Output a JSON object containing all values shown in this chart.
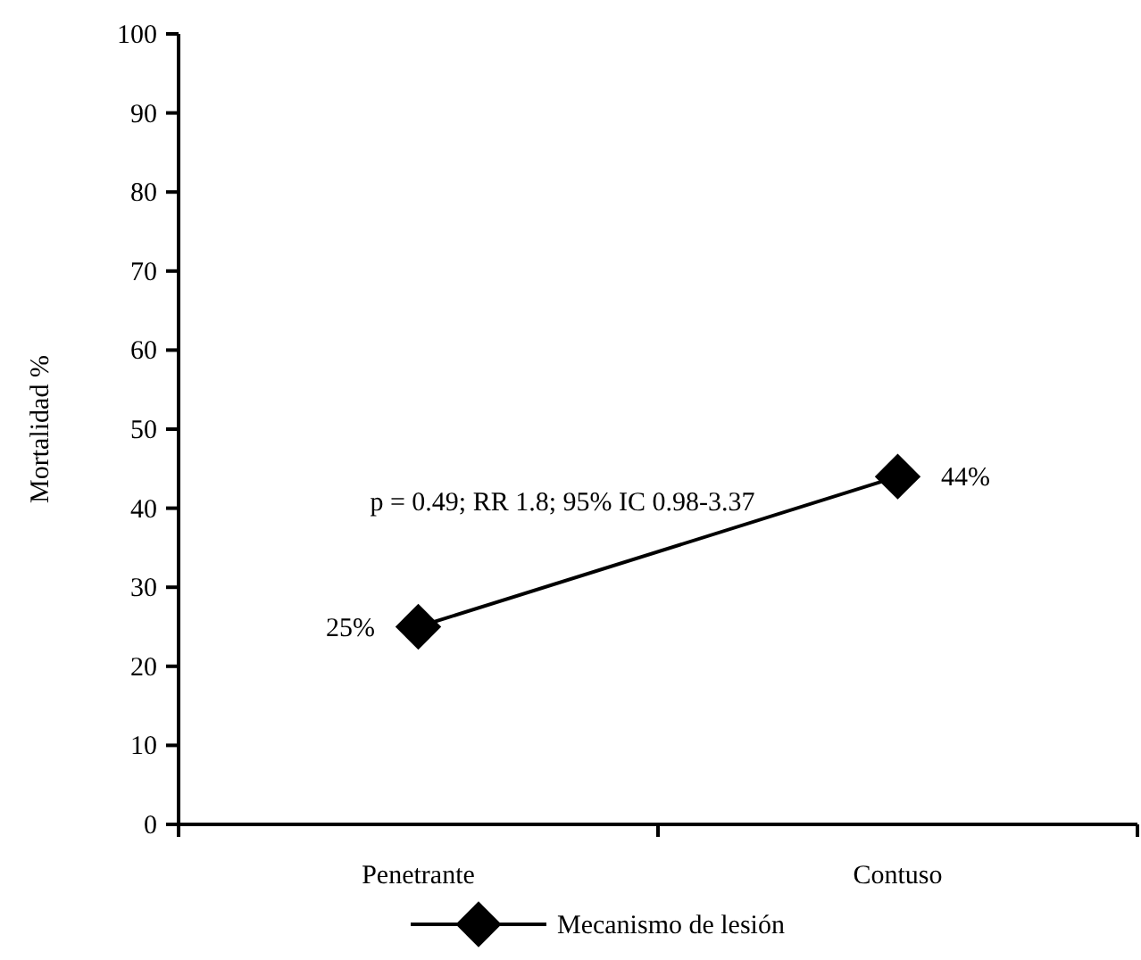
{
  "chart_data": {
    "type": "line",
    "ylabel": "Mortalidad %",
    "categories": [
      "Penetrante",
      "Contuso"
    ],
    "series": [
      {
        "name": "Mecanismo de lesión",
        "color": "#000000",
        "values": [
          25,
          44
        ],
        "value_labels": [
          "25%",
          "44%"
        ]
      }
    ],
    "ylim": [
      0,
      100
    ],
    "yticks": [
      0,
      10,
      20,
      30,
      40,
      50,
      60,
      70,
      80,
      90,
      100
    ],
    "annotations": [
      "p = 0.49; RR 1.8; 95% IC 0.98-3.37"
    ],
    "marker": "diamond",
    "line_style": "solid",
    "grid": false,
    "legend": "bottom"
  }
}
